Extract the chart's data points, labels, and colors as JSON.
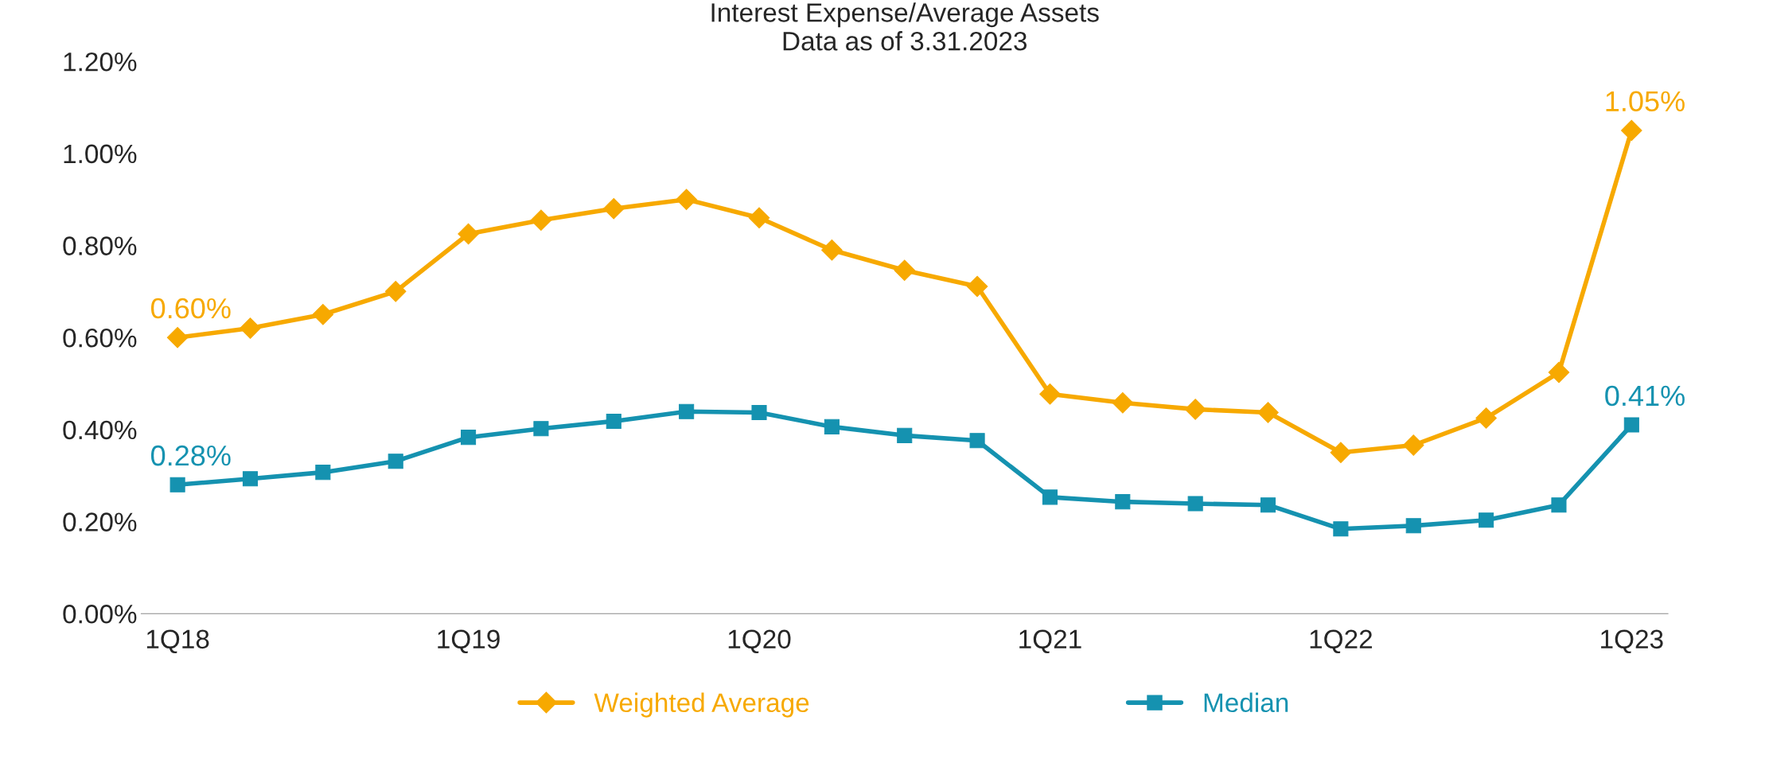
{
  "chart_data": {
    "type": "line",
    "title": "Interest Expense/Average Assets",
    "subtitle": "Data as of 3.31.2023",
    "categories": [
      "1Q18",
      null,
      null,
      null,
      "1Q19",
      null,
      null,
      null,
      "1Q20",
      null,
      null,
      null,
      "1Q21",
      null,
      null,
      null,
      "1Q22",
      null,
      null,
      null,
      "1Q23"
    ],
    "series": [
      {
        "name": "Weighted Average",
        "color": "#f7a900",
        "marker": "diamond",
        "values": [
          0.6,
          0.62,
          0.65,
          0.7,
          0.825,
          0.855,
          0.88,
          0.9,
          0.86,
          0.79,
          0.746,
          0.711,
          0.477,
          0.458,
          0.444,
          0.437,
          0.35,
          0.366,
          0.425,
          0.524,
          1.05
        ],
        "value_labels": [
          "0.60%",
          null,
          null,
          null,
          null,
          null,
          null,
          null,
          null,
          null,
          null,
          null,
          null,
          null,
          null,
          null,
          null,
          null,
          null,
          null,
          "1.05%"
        ]
      },
      {
        "name": "Median",
        "color": "#1592b0",
        "marker": "square",
        "values": [
          0.28,
          0.293,
          0.307,
          0.331,
          0.383,
          0.402,
          0.418,
          0.439,
          0.437,
          0.406,
          0.387,
          0.376,
          0.253,
          0.243,
          0.239,
          0.236,
          0.184,
          0.191,
          0.203,
          0.236,
          0.41
        ],
        "value_labels": [
          "0.28%",
          null,
          null,
          null,
          null,
          null,
          null,
          null,
          null,
          null,
          null,
          null,
          null,
          null,
          null,
          null,
          null,
          null,
          null,
          null,
          "0.41%"
        ]
      }
    ],
    "ylim": [
      0,
      1.2
    ],
    "yticks": [
      {
        "value": 0,
        "label": "0.00%"
      },
      {
        "value": 0.2,
        "label": "0.20%"
      },
      {
        "value": 0.4,
        "label": "0.40%"
      },
      {
        "value": 0.6,
        "label": "0.60%"
      },
      {
        "value": 0.8,
        "label": "0.80%"
      },
      {
        "value": 1.0,
        "label": "1.00%"
      },
      {
        "value": 1.2,
        "label": "1.20%"
      }
    ],
    "grid": false,
    "legend": "bottom",
    "line_style": "solid"
  }
}
